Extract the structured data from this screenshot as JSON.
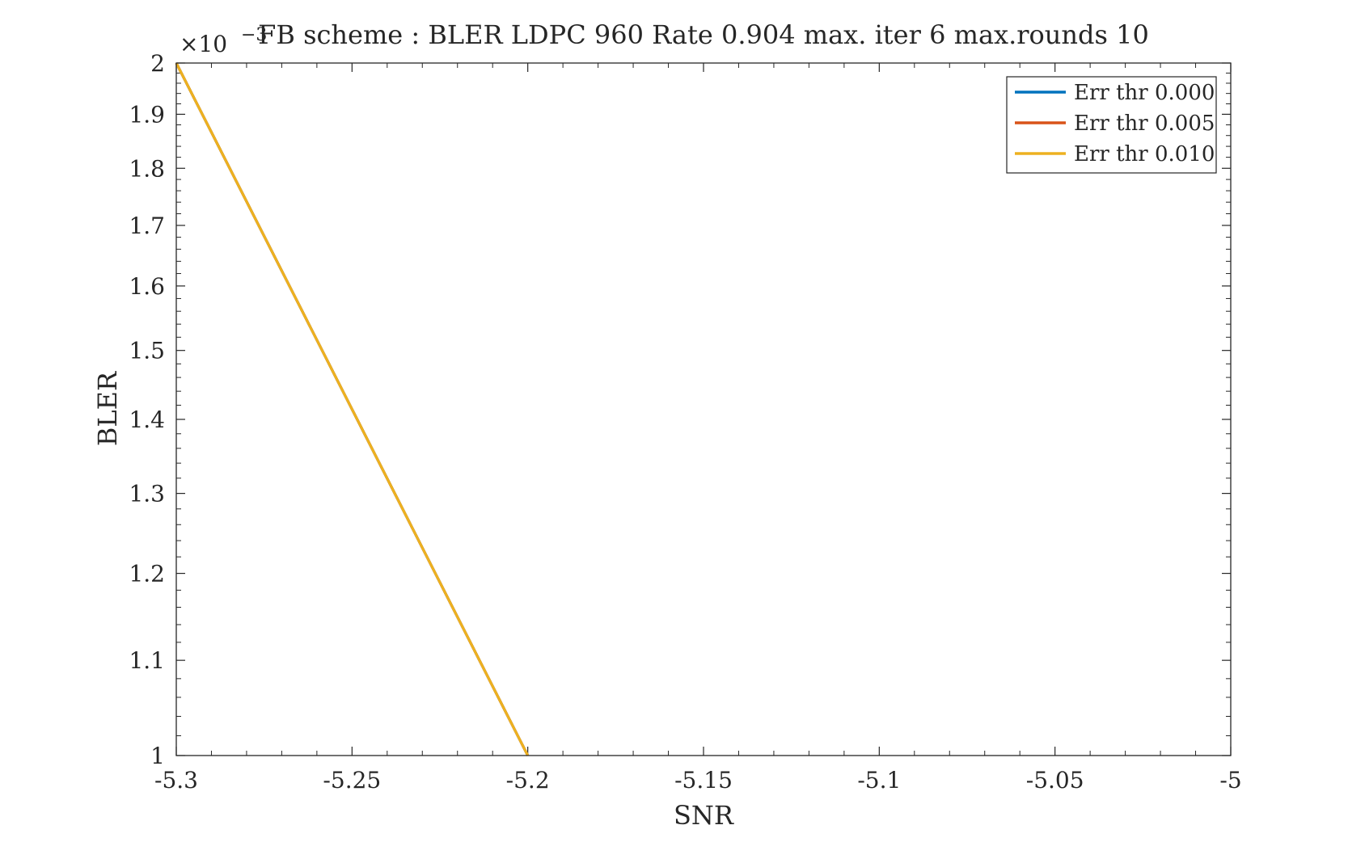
{
  "chart_data": {
    "type": "line",
    "title": "FB scheme : BLER LDPC 960 Rate 0.904 max. iter 6 max.rounds 10",
    "xlabel": "SNR",
    "ylabel": "BLER",
    "y_exponent_label": "×10",
    "y_exponent_power": "−3",
    "xlim": [
      -5.3,
      -5.0
    ],
    "ylim": [
      0.001,
      0.002
    ],
    "yscale": "log",
    "grid": false,
    "legend_position": "top-right",
    "x_ticks": [
      "-5.3",
      "-5.25",
      "-5.2",
      "-5.15",
      "-5.1",
      "-5.05",
      "-5"
    ],
    "x_tick_values": [
      -5.3,
      -5.25,
      -5.2,
      -5.15,
      -5.1,
      -5.05,
      -5.0
    ],
    "y_ticks": [
      "1",
      "1.1",
      "1.2",
      "1.3",
      "1.4",
      "1.5",
      "1.6",
      "1.7",
      "1.8",
      "1.9",
      "2"
    ],
    "y_tick_values": [
      0.001,
      0.0011,
      0.0012,
      0.0013,
      0.0014,
      0.0015,
      0.0016,
      0.0017,
      0.0018,
      0.0019,
      0.002
    ],
    "series": [
      {
        "name": "Err thr 0.000",
        "color": "#0072BD",
        "x": [
          -5.3,
          -5.2
        ],
        "y": [
          0.002,
          0.001
        ]
      },
      {
        "name": "Err thr 0.005",
        "color": "#D95319",
        "x": [
          -5.3,
          -5.2
        ],
        "y": [
          0.002,
          0.001
        ]
      },
      {
        "name": "Err thr 0.010",
        "color": "#EDB120",
        "x": [
          -5.3,
          -5.2
        ],
        "y": [
          0.002,
          0.001
        ]
      }
    ]
  }
}
